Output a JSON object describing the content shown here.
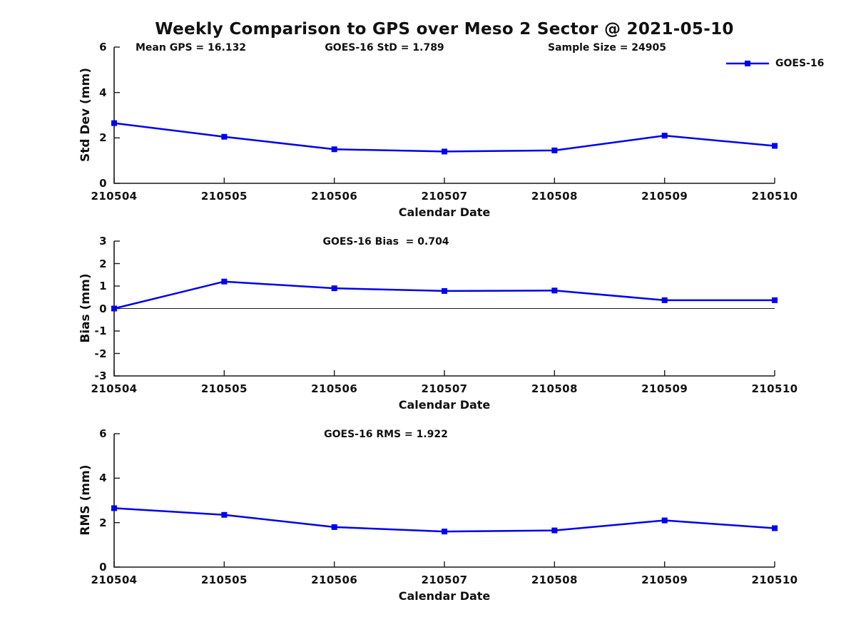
{
  "figure": {
    "title": "Weekly Comparison to GPS over Meso 2 Sector @ 2021-05-10",
    "legend": {
      "label": "GOES-16",
      "marker": "filled-square",
      "position": "top-right"
    },
    "colors": {
      "line": "#0000ee",
      "axis": "#1a1a1a",
      "text": "#111111",
      "background": "#ffffff"
    }
  },
  "chart_data": [
    {
      "type": "line",
      "categories": [
        "210504",
        "210505",
        "210506",
        "210507",
        "210508",
        "210509",
        "210510"
      ],
      "series": [
        {
          "name": "GOES-16",
          "color": "#0000ee",
          "marker": "filled-square",
          "values": [
            2.65,
            2.05,
            1.5,
            1.4,
            1.45,
            2.1,
            1.65
          ]
        }
      ],
      "xlabel": "Calendar Date",
      "ylabel": "Std Dev (mm)",
      "ylim": [
        0,
        6
      ],
      "yticks": [
        0,
        2,
        4,
        6
      ],
      "annotations": [
        "Mean GPS = 16.132",
        "GOES-16 StD = 1.789",
        "Sample Size = 24905"
      ],
      "grid": false,
      "legend_position": "top-right"
    },
    {
      "type": "line",
      "categories": [
        "210504",
        "210505",
        "210506",
        "210507",
        "210508",
        "210509",
        "210510"
      ],
      "series": [
        {
          "name": "GOES-16",
          "color": "#0000ee",
          "marker": "filled-square",
          "values": [
            0.0,
            1.2,
            0.9,
            0.78,
            0.8,
            0.37,
            0.37
          ]
        }
      ],
      "xlabel": "Calendar Date",
      "ylabel": "Bias (mm)",
      "ylim": [
        -3,
        3
      ],
      "yticks": [
        -3,
        -2,
        -1,
        0,
        1,
        2,
        3
      ],
      "annotations": [
        "GOES-16 Bias  = 0.704"
      ],
      "zero_line": true,
      "grid": false
    },
    {
      "type": "line",
      "categories": [
        "210504",
        "210505",
        "210506",
        "210507",
        "210508",
        "210509",
        "210510"
      ],
      "series": [
        {
          "name": "GOES-16",
          "color": "#0000ee",
          "marker": "filled-square",
          "values": [
            2.65,
            2.35,
            1.8,
            1.6,
            1.65,
            2.1,
            1.75
          ]
        }
      ],
      "xlabel": "Calendar Date",
      "ylabel": "RMS (mm)",
      "ylim": [
        0,
        6
      ],
      "yticks": [
        0,
        2,
        4,
        6
      ],
      "annotations": [
        "GOES-16 RMS = 1.922"
      ],
      "grid": false
    }
  ]
}
